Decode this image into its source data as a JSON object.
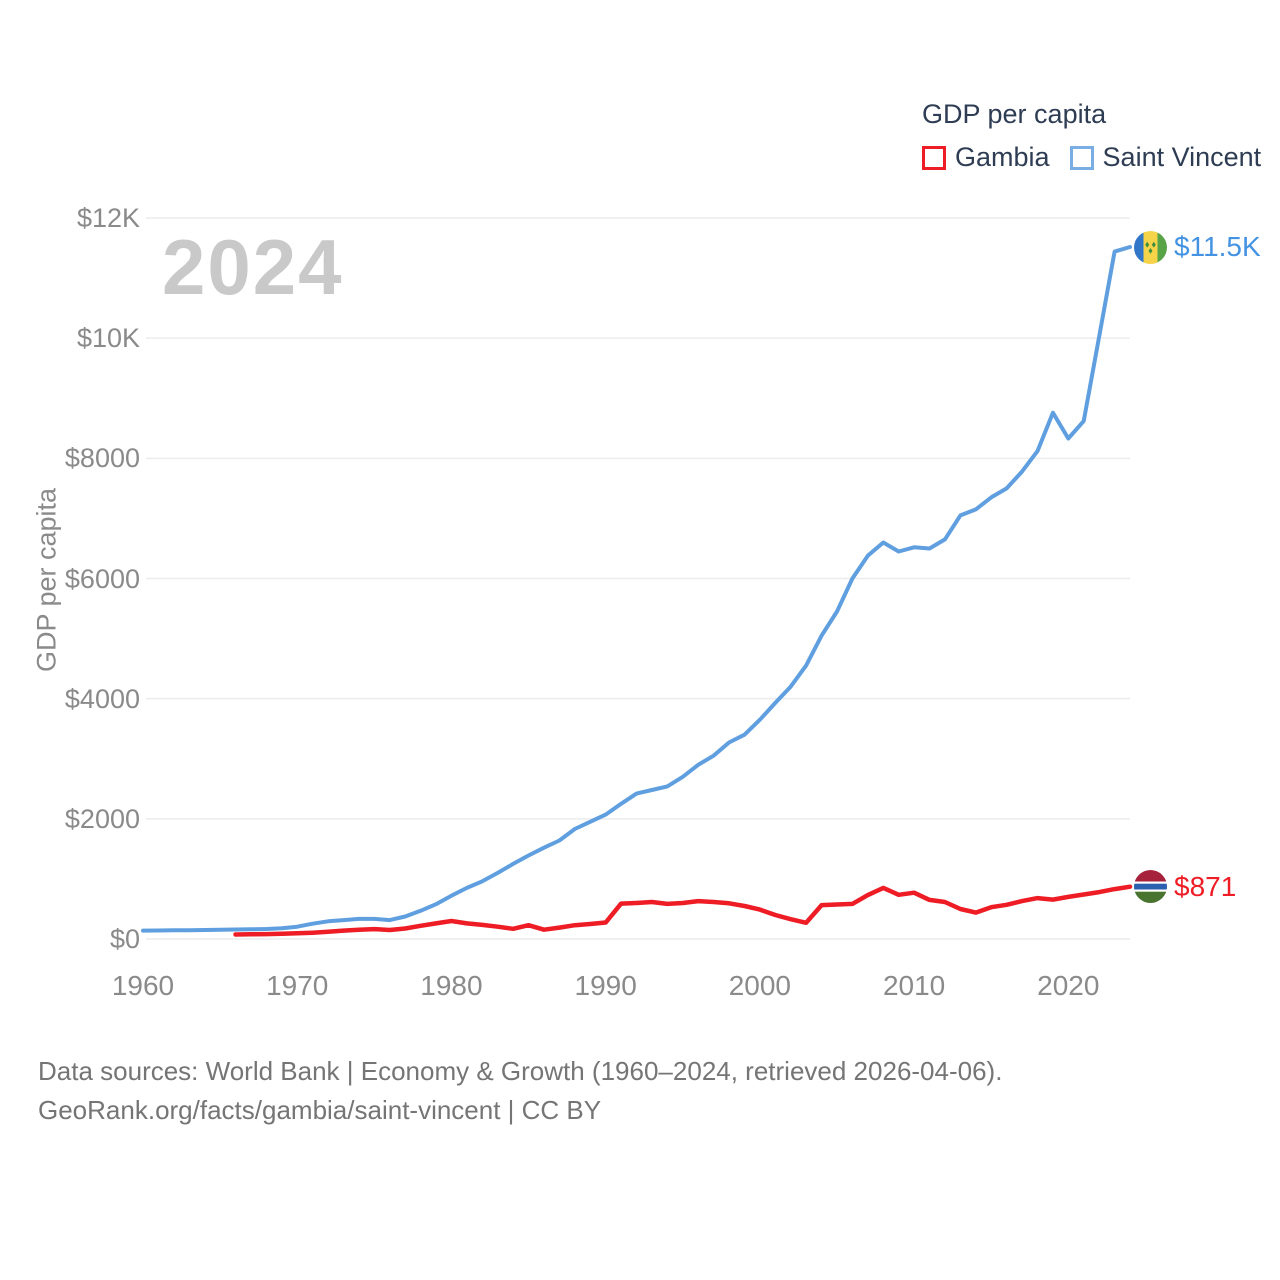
{
  "page": {
    "background": "#ffffff"
  },
  "legend": {
    "title": "GDP per capita",
    "items": [
      {
        "label": "Gambia",
        "box_color": "#ee1d25"
      },
      {
        "label": "Saint Vincent",
        "box_color": "#7aade3"
      }
    ]
  },
  "watermark": "2024",
  "footer": {
    "line1": "Data sources: World Bank | Economy & Growth (1960–2024, retrieved 2026-04-06).",
    "line2": "GeoRank.org/facts/gambia/saint-vincent | CC BY"
  },
  "chart_data": {
    "type": "line",
    "title": "GDP per capita",
    "ylabel": "GDP per capita",
    "xlabel": "",
    "x_range": [
      1960,
      2024
    ],
    "y_range": [
      0,
      12000
    ],
    "grid": true,
    "grid_color": "#ececec",
    "legend_position": "top-right",
    "y_ticks": [
      {
        "value": 0,
        "label": "$0"
      },
      {
        "value": 2000,
        "label": "$2000"
      },
      {
        "value": 4000,
        "label": "$4000"
      },
      {
        "value": 6000,
        "label": "$6000"
      },
      {
        "value": 8000,
        "label": "$8000"
      },
      {
        "value": 10000,
        "label": "$10K"
      },
      {
        "value": 12000,
        "label": "$12K"
      }
    ],
    "x_ticks": [
      {
        "value": 1960,
        "label": "1960"
      },
      {
        "value": 1970,
        "label": "1970"
      },
      {
        "value": 1980,
        "label": "1980"
      },
      {
        "value": 1990,
        "label": "1990"
      },
      {
        "value": 2000,
        "label": "2000"
      },
      {
        "value": 2010,
        "label": "2010"
      },
      {
        "value": 2020,
        "label": "2020"
      }
    ],
    "series": [
      {
        "id": "gambia",
        "name": "Gambia",
        "color": "#ee1d25",
        "label_color": "#ee1d25",
        "stroke_width": 4.5,
        "end_label": "$871",
        "flag": "gambia-flag",
        "points": [
          [
            1966,
            75
          ],
          [
            1967,
            78
          ],
          [
            1968,
            82
          ],
          [
            1969,
            88
          ],
          [
            1970,
            95
          ],
          [
            1971,
            105
          ],
          [
            1972,
            120
          ],
          [
            1973,
            140
          ],
          [
            1974,
            155
          ],
          [
            1975,
            165
          ],
          [
            1976,
            150
          ],
          [
            1977,
            175
          ],
          [
            1978,
            220
          ],
          [
            1979,
            260
          ],
          [
            1980,
            300
          ],
          [
            1981,
            260
          ],
          [
            1982,
            235
          ],
          [
            1983,
            205
          ],
          [
            1984,
            170
          ],
          [
            1985,
            230
          ],
          [
            1986,
            155
          ],
          [
            1987,
            190
          ],
          [
            1988,
            230
          ],
          [
            1989,
            250
          ],
          [
            1990,
            275
          ],
          [
            1991,
            590
          ],
          [
            1992,
            600
          ],
          [
            1993,
            615
          ],
          [
            1994,
            585
          ],
          [
            1995,
            600
          ],
          [
            1996,
            630
          ],
          [
            1997,
            615
          ],
          [
            1998,
            595
          ],
          [
            1999,
            550
          ],
          [
            2000,
            490
          ],
          [
            2001,
            400
          ],
          [
            2002,
            330
          ],
          [
            2003,
            270
          ],
          [
            2004,
            565
          ],
          [
            2005,
            575
          ],
          [
            2006,
            585
          ],
          [
            2007,
            730
          ],
          [
            2008,
            850
          ],
          [
            2009,
            735
          ],
          [
            2010,
            770
          ],
          [
            2011,
            650
          ],
          [
            2012,
            615
          ],
          [
            2013,
            500
          ],
          [
            2014,
            440
          ],
          [
            2015,
            530
          ],
          [
            2016,
            570
          ],
          [
            2017,
            630
          ],
          [
            2018,
            680
          ],
          [
            2019,
            655
          ],
          [
            2020,
            700
          ],
          [
            2021,
            740
          ],
          [
            2022,
            780
          ],
          [
            2023,
            830
          ],
          [
            2024,
            871
          ]
        ]
      },
      {
        "id": "saint-vincent",
        "name": "Saint Vincent",
        "color": "#5f9fe0",
        "label_color": "#4493e2",
        "stroke_width": 4,
        "end_label": "$11.5K",
        "flag": "saint-vincent-flag",
        "points": [
          [
            1960,
            140
          ],
          [
            1961,
            142
          ],
          [
            1962,
            144
          ],
          [
            1963,
            146
          ],
          [
            1964,
            150
          ],
          [
            1965,
            155
          ],
          [
            1966,
            158
          ],
          [
            1967,
            162
          ],
          [
            1968,
            167
          ],
          [
            1969,
            180
          ],
          [
            1970,
            205
          ],
          [
            1971,
            255
          ],
          [
            1972,
            295
          ],
          [
            1973,
            315
          ],
          [
            1974,
            335
          ],
          [
            1975,
            335
          ],
          [
            1976,
            315
          ],
          [
            1977,
            375
          ],
          [
            1978,
            470
          ],
          [
            1979,
            580
          ],
          [
            1980,
            720
          ],
          [
            1981,
            850
          ],
          [
            1982,
            960
          ],
          [
            1983,
            1100
          ],
          [
            1984,
            1250
          ],
          [
            1985,
            1390
          ],
          [
            1986,
            1520
          ],
          [
            1987,
            1640
          ],
          [
            1988,
            1830
          ],
          [
            1989,
            1950
          ],
          [
            1990,
            2070
          ],
          [
            1991,
            2250
          ],
          [
            1992,
            2420
          ],
          [
            1993,
            2480
          ],
          [
            1994,
            2540
          ],
          [
            1995,
            2700
          ],
          [
            1996,
            2900
          ],
          [
            1997,
            3050
          ],
          [
            1998,
            3270
          ],
          [
            1999,
            3400
          ],
          [
            2000,
            3650
          ],
          [
            2001,
            3930
          ],
          [
            2002,
            4200
          ],
          [
            2003,
            4550
          ],
          [
            2004,
            5050
          ],
          [
            2005,
            5450
          ],
          [
            2006,
            6000
          ],
          [
            2007,
            6380
          ],
          [
            2008,
            6600
          ],
          [
            2009,
            6450
          ],
          [
            2010,
            6520
          ],
          [
            2011,
            6500
          ],
          [
            2012,
            6650
          ],
          [
            2013,
            7050
          ],
          [
            2014,
            7150
          ],
          [
            2015,
            7350
          ],
          [
            2016,
            7500
          ],
          [
            2017,
            7780
          ],
          [
            2018,
            8120
          ],
          [
            2019,
            8760
          ],
          [
            2020,
            8330
          ],
          [
            2021,
            8620
          ],
          [
            2022,
            10030
          ],
          [
            2023,
            11440
          ],
          [
            2024,
            11517
          ]
        ]
      }
    ]
  }
}
